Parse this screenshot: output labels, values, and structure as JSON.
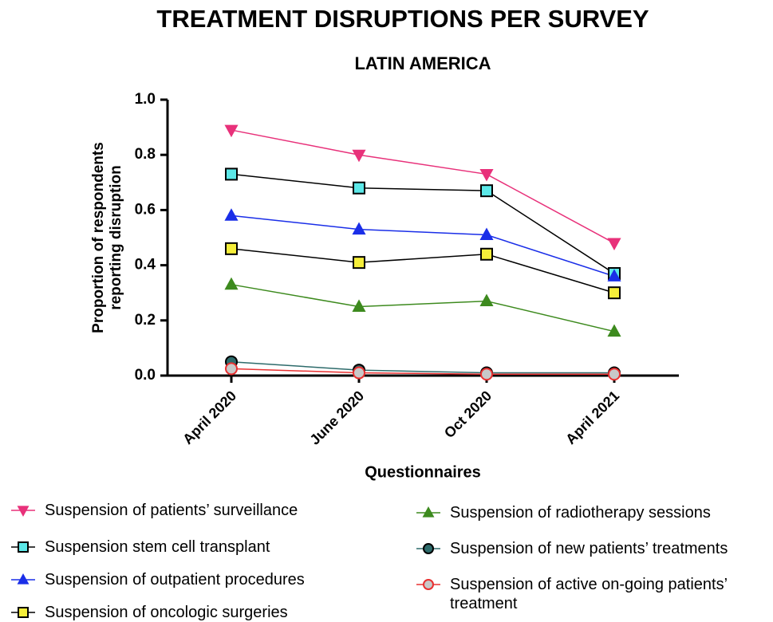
{
  "chart_data": {
    "type": "line",
    "title": "TREATMENT DISRUPTIONS PER SURVEY",
    "subtitle": "LATIN AMERICA",
    "x_label": "Questionnaires",
    "y_label": "Proportion of respondents reporting disruption",
    "categories": [
      "April 2020",
      "June 2020",
      "Oct 2020",
      "April 2021"
    ],
    "ylim": [
      0,
      1
    ],
    "yticks": [
      {
        "value": 0,
        "label": "0.0"
      },
      0.2,
      0.4,
      0.6,
      0.8,
      {
        "value": 1,
        "label": "1.0"
      }
    ],
    "series": [
      {
        "name": "Suspension of patients’ surveillance",
        "color": "#e8317a",
        "line_color": "#e8317a",
        "marker": "triangle-down",
        "values": [
          0.89,
          0.8,
          0.73,
          0.48
        ]
      },
      {
        "name": "Suspension stem cell transplant",
        "color": "#5ce8e8",
        "line_color": "#000000",
        "marker": "square",
        "values": [
          0.73,
          0.68,
          0.67,
          0.37
        ]
      },
      {
        "name": "Suspension of outpatient procedures",
        "color": "#1a2ee8",
        "line_color": "#1a2ee8",
        "marker": "triangle-up",
        "values": [
          0.58,
          0.53,
          0.51,
          0.36
        ]
      },
      {
        "name": "Suspension of oncologic surgeries",
        "color": "#f5ee3a",
        "line_color": "#000000",
        "marker": "square",
        "values": [
          0.46,
          0.41,
          0.44,
          0.3
        ]
      },
      {
        "name": "Suspension of radiotherapy sessions",
        "color": "#3d8a1e",
        "line_color": "#3d8a1e",
        "marker": "triangle-up",
        "values": [
          0.33,
          0.25,
          0.27,
          0.16
        ]
      },
      {
        "name": "Suspension of new patients’ treatments",
        "color": "#2d6b6b",
        "line_color": "#2d6b6b",
        "marker": "circle",
        "values": [
          0.05,
          0.02,
          0.01,
          0.01
        ]
      },
      {
        "name": "Suspension of active on-going patients’ treatment",
        "color": "#c8c8c8",
        "line_color": "#e83030",
        "marker": "circle",
        "values": [
          0.025,
          0.01,
          0.005,
          0.005
        ]
      }
    ]
  }
}
